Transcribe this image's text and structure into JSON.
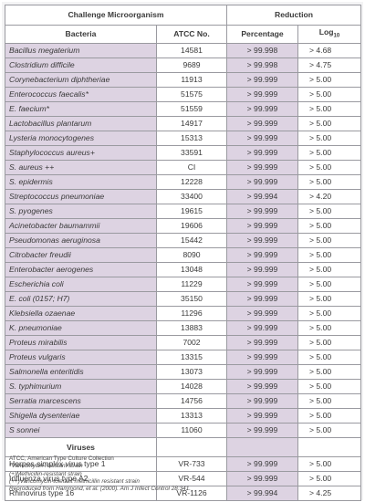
{
  "header": {
    "group_left": "Challenge Microorganism",
    "group_right": "Reduction",
    "col_bacteria": "Bacteria",
    "col_atcc": "ATCC No.",
    "col_percentage": "Percentage",
    "col_log_base": "Log",
    "col_log_sub": "10"
  },
  "bacteria": [
    {
      "name": "Bacillus megaterium",
      "atcc": "14581",
      "pct": "> 99.998",
      "log": "> 4.68"
    },
    {
      "name": "Clostridium difficile",
      "atcc": "9689",
      "pct": "> 99.998",
      "log": "> 4.75"
    },
    {
      "name": "Corynebacterium diphtheriae",
      "atcc": "11913",
      "pct": "> 99.999",
      "log": "> 5.00"
    },
    {
      "name": "Enterococcus faecalis*",
      "atcc": "51575",
      "pct": "> 99.999",
      "log": "> 5.00"
    },
    {
      "name": "E. faecium*",
      "atcc": "51559",
      "pct": "> 99.999",
      "log": "> 5.00"
    },
    {
      "name": "Lactobacillus plantarum",
      "atcc": "14917",
      "pct": "> 99.999",
      "log": "> 5.00"
    },
    {
      "name": "Lysteria monocytogenes",
      "atcc": "15313",
      "pct": "> 99.999",
      "log": "> 5.00"
    },
    {
      "name": "Staphylococcus aureus+",
      "atcc": "33591",
      "pct": "> 99.999",
      "log": "> 5.00"
    },
    {
      "name": "S. aureus ++",
      "atcc": "CI",
      "pct": "> 99.999",
      "log": "> 5.00"
    },
    {
      "name": "S. epidermis",
      "atcc": "12228",
      "pct": "> 99.999",
      "log": "> 5.00"
    },
    {
      "name": "Streptococcus pneumoniae",
      "atcc": "33400",
      "pct": "> 99.994",
      "log": "> 4.20"
    },
    {
      "name": "S. pyogenes",
      "atcc": "19615",
      "pct": "> 99.999",
      "log": "> 5.00"
    },
    {
      "name": "Acinetobacter baumammii",
      "atcc": "19606",
      "pct": "> 99.999",
      "log": "> 5.00"
    },
    {
      "name": "Pseudomonas aeruginosa",
      "atcc": "15442",
      "pct": "> 99.999",
      "log": "> 5.00"
    },
    {
      "name": "Citrobacter freudii",
      "atcc": "8090",
      "pct": "> 99.999",
      "log": "> 5.00"
    },
    {
      "name": "Enterobacter aerogenes",
      "atcc": "13048",
      "pct": "> 99.999",
      "log": "> 5.00"
    },
    {
      "name": "Escherichia coli",
      "atcc": "11229",
      "pct": "> 99.999",
      "log": "> 5.00"
    },
    {
      "name": "E. coli (0157; H7)",
      "atcc": "35150",
      "pct": "> 99.999",
      "log": "> 5.00"
    },
    {
      "name": "Klebsiella ozaenae",
      "atcc": "11296",
      "pct": "> 99.999",
      "log": "> 5.00"
    },
    {
      "name": "K. pneumoniae",
      "atcc": "13883",
      "pct": "> 99.999",
      "log": "> 5.00"
    },
    {
      "name": "Proteus mirabilis",
      "atcc": "7002",
      "pct": "> 99.999",
      "log": "> 5.00"
    },
    {
      "name": "Proteus vulgaris",
      "atcc": "13315",
      "pct": "> 99.999",
      "log": "> 5.00"
    },
    {
      "name": "Salmonella enteritidis",
      "atcc": "13073",
      "pct": "> 99.999",
      "log": "> 5.00"
    },
    {
      "name": "S. typhimurium",
      "atcc": "14028",
      "pct": "> 99.999",
      "log": "> 5.00"
    },
    {
      "name": "Serratia marcescens",
      "atcc": "14756",
      "pct": "> 99.999",
      "log": "> 5.00"
    },
    {
      "name": "Shigella dysenteriae",
      "atcc": "13313",
      "pct": "> 99.999",
      "log": "> 5.00"
    },
    {
      "name": "S sonnei",
      "atcc": "11060",
      "pct": "> 99.999",
      "log": "> 5.00"
    }
  ],
  "viruses_header": "Viruses",
  "viruses": [
    {
      "name": "Herpes simplex virus type 1",
      "atcc": "VR-733",
      "pct": "> 99.999",
      "log": "> 5.00"
    },
    {
      "name": "Influenza virus type A2",
      "atcc": "VR-544",
      "pct": "> 99.999",
      "log": "> 5.00"
    },
    {
      "name": "Rhinovirus type 16",
      "atcc": "VR-1126",
      "pct": "> 99.994",
      "log": "> 4.25"
    }
  ],
  "footnotes": [
    "ATCC, American Type Culture Collection",
    "*Vancomycin-resistant strain",
    "(+)Methicillin-resistant strain",
    "(++)Vancomycin-tolerant methicillin resistant strain",
    "Reproduced from Hammond, et al. (2000). Am J Infect Control 28:341."
  ],
  "colors": {
    "shade": "#ddd3e2",
    "border": "#9a9aa0",
    "panel": "#f4f4f5"
  }
}
